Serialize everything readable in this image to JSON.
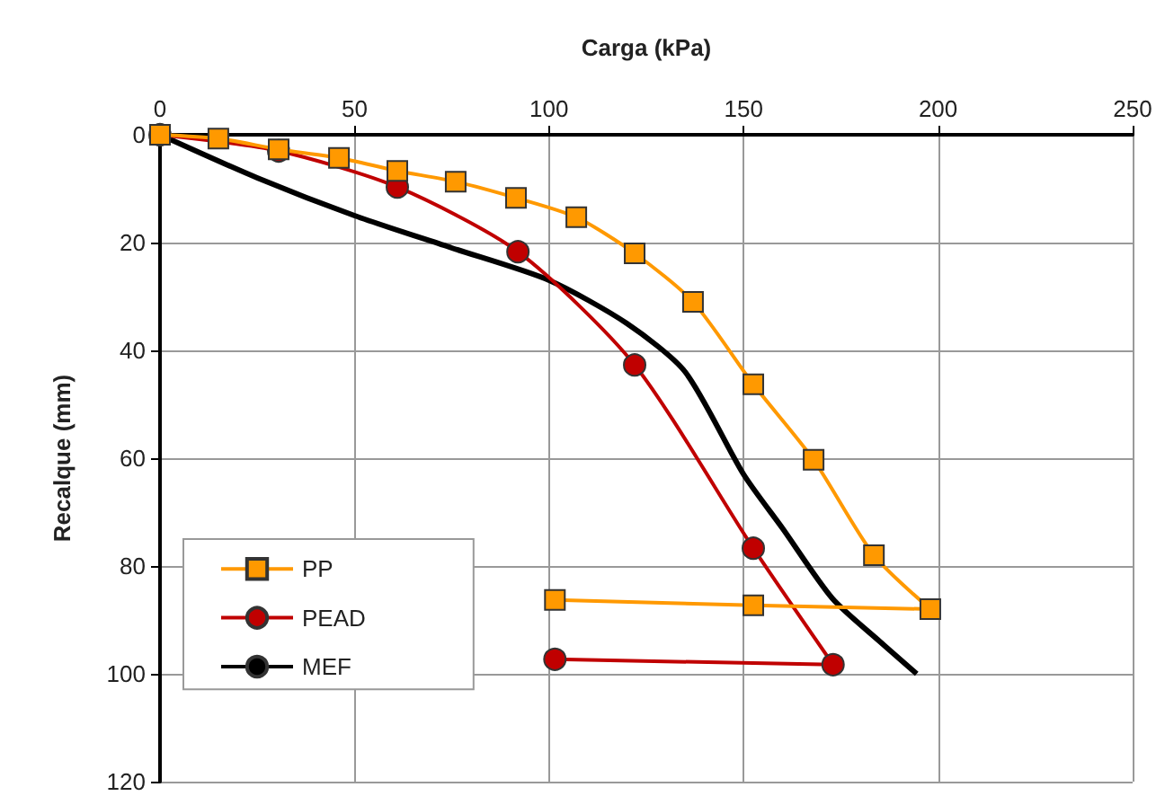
{
  "chart_data": {
    "type": "line",
    "xlabel": "Carga (kPa)",
    "ylabel": "Recalque (mm)",
    "xlim": [
      0,
      250
    ],
    "xticks": [
      0,
      50,
      100,
      150,
      200,
      250
    ],
    "ylim": [
      120,
      0
    ],
    "yticks": [
      0,
      20,
      40,
      60,
      80,
      100,
      120
    ],
    "grid": true,
    "legend": "bottom left",
    "series": [
      {
        "name": "PP",
        "color": "#ff9900",
        "marker": "square",
        "x": [
          0,
          15,
          30.5,
          46,
          61,
          76,
          91.5,
          107,
          122,
          137,
          152.5,
          168,
          183.5,
          198,
          152.5,
          101.5
        ],
        "values": [
          0,
          0.7,
          2.7,
          4.3,
          6.7,
          8.7,
          11.7,
          15.3,
          22,
          31,
          46.3,
          60.3,
          78,
          88,
          87.3,
          86.3
        ]
      },
      {
        "name": "PEAD",
        "color": "#c00000",
        "marker": "circle",
        "x": [
          0,
          30.5,
          61,
          92,
          122,
          152.5,
          173,
          101.5
        ],
        "values": [
          0,
          3,
          9.7,
          21.7,
          42.7,
          76.7,
          98.3,
          97.3
        ]
      },
      {
        "name": "MEF",
        "color": "#000000",
        "marker": "none",
        "x": [
          0,
          25,
          50,
          75,
          100,
          120,
          135,
          150,
          160,
          172.8,
          185,
          194.5
        ],
        "values": [
          0,
          8,
          15,
          21,
          27,
          35,
          44,
          63,
          73,
          86,
          94,
          100
        ]
      }
    ]
  }
}
